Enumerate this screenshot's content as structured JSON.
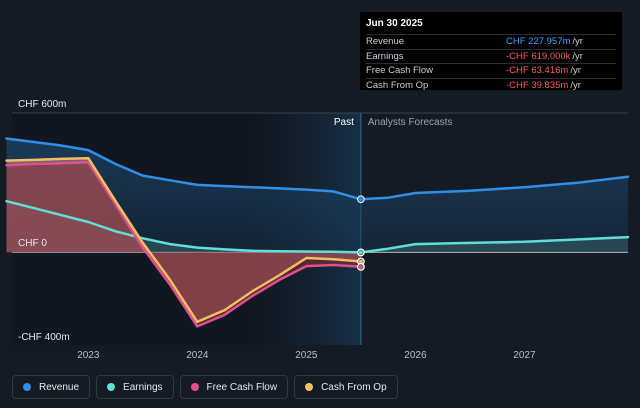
{
  "tooltip": {
    "date": "Jun 30 2025",
    "rows": [
      {
        "label": "Revenue",
        "value": "CHF 227.957m",
        "unit": "/yr",
        "color": "#38a7ff"
      },
      {
        "label": "Earnings",
        "value": "-CHF 619.000k",
        "unit": "/yr",
        "color": "#ff5a5a"
      },
      {
        "label": "Free Cash Flow",
        "value": "-CHF 63.416m",
        "unit": "/yr",
        "color": "#ff5a5a"
      },
      {
        "label": "Cash From Op",
        "value": "-CHF 39.835m",
        "unit": "/yr",
        "color": "#ff5a5a"
      }
    ]
  },
  "legend": [
    {
      "label": "Revenue",
      "color": "#2f8fe6"
    },
    {
      "label": "Earnings",
      "color": "#5fe0d6"
    },
    {
      "label": "Free Cash Flow",
      "color": "#e0508f"
    },
    {
      "label": "Cash From Op",
      "color": "#f0c060"
    }
  ],
  "chart_data": {
    "type": "area",
    "y_labels": {
      "top": "CHF 600m",
      "zero": "CHF 0",
      "bottom": "-CHF 400m"
    },
    "ylim": [
      -400,
      600
    ],
    "xlim": [
      2022.3,
      2027.95
    ],
    "x_ticks": [
      "2023",
      "2024",
      "2025",
      "2026",
      "2027"
    ],
    "x_tick_values": [
      2023,
      2024,
      2025,
      2026,
      2027
    ],
    "past_label": "Past",
    "forecast_label": "Analysts Forecasts",
    "divider_x": 2025.5,
    "highlight_start_x": 2024.5,
    "series": [
      {
        "name": "Revenue",
        "color": "#2f8fe6",
        "x": [
          2022.25,
          2022.5,
          2022.75,
          2023.0,
          2023.25,
          2023.5,
          2023.75,
          2024.0,
          2024.25,
          2024.5,
          2024.75,
          2025.0,
          2025.25,
          2025.5,
          2025.75,
          2026.0,
          2026.5,
          2027.0,
          2027.5,
          2027.95
        ],
        "y": [
          490,
          475,
          460,
          440,
          380,
          330,
          310,
          290,
          285,
          280,
          275,
          270,
          262,
          228,
          235,
          255,
          265,
          280,
          300,
          325
        ]
      },
      {
        "name": "Earnings",
        "color": "#5fe0d6",
        "x": [
          2022.25,
          2022.5,
          2022.75,
          2023.0,
          2023.25,
          2023.5,
          2023.75,
          2024.0,
          2024.25,
          2024.5,
          2024.75,
          2025.0,
          2025.25,
          2025.5,
          2025.75,
          2026.0,
          2026.5,
          2027.0,
          2027.5,
          2027.95
        ],
        "y": [
          220,
          190,
          160,
          130,
          90,
          60,
          35,
          20,
          12,
          6,
          4,
          3,
          2,
          -1,
          15,
          35,
          40,
          45,
          55,
          65
        ]
      },
      {
        "name": "Free Cash Flow",
        "color": "#e0508f",
        "x": [
          2022.25,
          2022.5,
          2022.75,
          2023.0,
          2023.25,
          2023.5,
          2023.75,
          2024.0,
          2024.25,
          2024.5,
          2024.75,
          2025.0,
          2025.25,
          2025.5
        ],
        "y": [
          375,
          380,
          383,
          388,
          205,
          20,
          -140,
          -320,
          -270,
          -190,
          -120,
          -60,
          -55,
          -63
        ]
      },
      {
        "name": "Cash From Op",
        "color": "#f0c060",
        "x": [
          2022.25,
          2022.5,
          2022.75,
          2023.0,
          2023.25,
          2023.5,
          2023.75,
          2024.0,
          2024.25,
          2024.5,
          2024.75,
          2025.0,
          2025.25,
          2025.5
        ],
        "y": [
          395,
          398,
          402,
          405,
          220,
          40,
          -120,
          -300,
          -250,
          -170,
          -100,
          -25,
          -30,
          -40
        ]
      }
    ]
  }
}
